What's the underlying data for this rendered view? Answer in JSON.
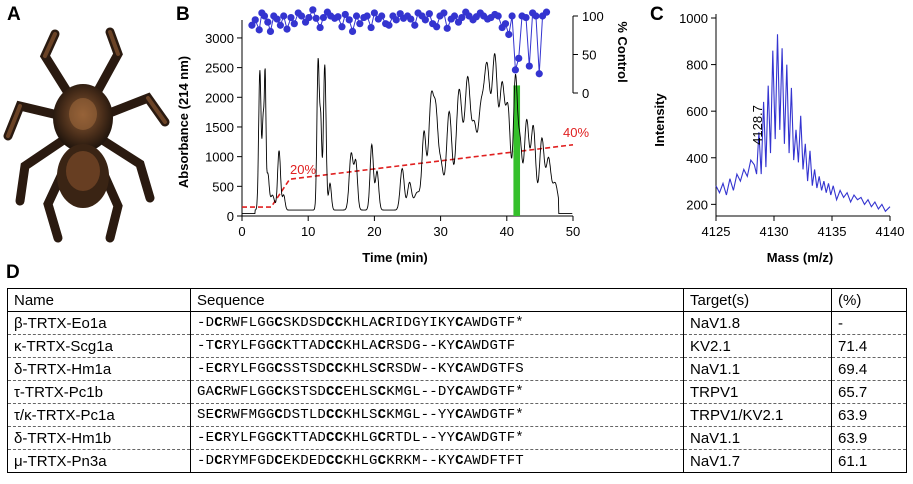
{
  "panels": {
    "a": "A",
    "b": "B",
    "c": "C",
    "d": "D"
  },
  "panel_a": {
    "image": "tarantula-photo"
  },
  "chart_data": [
    {
      "type": "line",
      "panel": "B",
      "title": "",
      "xlabel": "Time (min)",
      "ylabel": "Absorbance (214 nm)",
      "y2label": "% Control",
      "xlim": [
        0,
        50
      ],
      "ylim": [
        0,
        3100
      ],
      "y2lim": [
        0,
        110
      ],
      "xticks": [
        "0",
        "10",
        "20",
        "30",
        "40",
        "50"
      ],
      "yticks": [
        "0",
        "500",
        "1000",
        "1500",
        "2000",
        "2500",
        "3000"
      ],
      "y2ticks": [
        "0",
        "50",
        "100"
      ],
      "gradient_labels": [
        "20%",
        "40%"
      ],
      "gradient": {
        "x": [
          0,
          4.4,
          7.2,
          50
        ],
        "y": [
          150,
          150,
          620,
          1200
        ]
      },
      "highlight": {
        "x_start": 41.0,
        "x_end": 42.0,
        "color": "#35c02b"
      },
      "absorbance_peaks": [
        {
          "t": 2.7,
          "h": 2350,
          "w": 0.18
        },
        {
          "t": 3.2,
          "h": 1500,
          "w": 0.15
        },
        {
          "t": 3.5,
          "h": 2100,
          "w": 0.12
        },
        {
          "t": 3.9,
          "h": 600,
          "w": 0.2
        },
        {
          "t": 4.6,
          "h": 250,
          "w": 0.3
        },
        {
          "t": 5.6,
          "h": 1000,
          "w": 0.22
        },
        {
          "t": 6.3,
          "h": 250,
          "w": 0.2
        },
        {
          "t": 11.5,
          "h": 2520,
          "w": 0.18
        },
        {
          "t": 11.9,
          "h": 1400,
          "w": 0.15
        },
        {
          "t": 12.5,
          "h": 2450,
          "w": 0.2
        },
        {
          "t": 13.3,
          "h": 450,
          "w": 0.2
        },
        {
          "t": 16.5,
          "h": 950,
          "w": 0.3
        },
        {
          "t": 17.2,
          "h": 780,
          "w": 0.25
        },
        {
          "t": 19.6,
          "h": 1100,
          "w": 0.25
        },
        {
          "t": 20.4,
          "h": 650,
          "w": 0.25
        },
        {
          "t": 24.2,
          "h": 700,
          "w": 0.3
        },
        {
          "t": 25.3,
          "h": 450,
          "w": 0.3
        },
        {
          "t": 26.5,
          "h": 300,
          "w": 0.5
        },
        {
          "t": 27.5,
          "h": 1250,
          "w": 0.3
        },
        {
          "t": 28.6,
          "h": 1900,
          "w": 0.4
        },
        {
          "t": 29.3,
          "h": 1200,
          "w": 0.3
        },
        {
          "t": 30.0,
          "h": 800,
          "w": 0.4
        },
        {
          "t": 31.3,
          "h": 1650,
          "w": 0.4
        },
        {
          "t": 32.8,
          "h": 2000,
          "w": 0.45
        },
        {
          "t": 34.1,
          "h": 2200,
          "w": 0.45
        },
        {
          "t": 35.1,
          "h": 1200,
          "w": 0.35
        },
        {
          "t": 36.0,
          "h": 1400,
          "w": 0.4
        },
        {
          "t": 37.0,
          "h": 2400,
          "w": 0.5
        },
        {
          "t": 38.2,
          "h": 2450,
          "w": 0.4
        },
        {
          "t": 39.3,
          "h": 2050,
          "w": 0.4
        },
        {
          "t": 40.2,
          "h": 1600,
          "w": 0.35
        },
        {
          "t": 41.3,
          "h": 2200,
          "w": 0.3
        },
        {
          "t": 42.0,
          "h": 1100,
          "w": 0.3
        },
        {
          "t": 43.0,
          "h": 1500,
          "w": 0.35
        },
        {
          "t": 44.0,
          "h": 1400,
          "w": 0.35
        },
        {
          "t": 45.3,
          "h": 1200,
          "w": 0.35
        },
        {
          "t": 46.3,
          "h": 850,
          "w": 0.35
        },
        {
          "t": 47.3,
          "h": 450,
          "w": 0.4
        }
      ],
      "baseline": 100,
      "activity": {
        "x": [
          1.5,
          2.0,
          2.6,
          3.0,
          3.4,
          3.9,
          4.3,
          4.8,
          5.3,
          5.8,
          6.3,
          6.8,
          7.4,
          7.9,
          8.5,
          9.0,
          9.6,
          10.1,
          10.7,
          11.2,
          11.8,
          12.3,
          12.9,
          13.4,
          14.0,
          14.5,
          15.1,
          15.6,
          16.2,
          16.7,
          17.3,
          17.8,
          18.4,
          18.9,
          19.5,
          20.0,
          20.6,
          21.1,
          21.7,
          22.2,
          22.8,
          23.3,
          23.9,
          24.4,
          25.0,
          25.5,
          26.1,
          26.6,
          27.2,
          27.7,
          28.3,
          28.8,
          29.4,
          29.9,
          30.5,
          31.0,
          31.6,
          32.1,
          32.7,
          33.2,
          33.8,
          34.3,
          34.9,
          35.4,
          36.0,
          36.5,
          37.1,
          37.6,
          38.2,
          38.7,
          39.3,
          39.8,
          40.3,
          40.8,
          41.3,
          41.8,
          42.3,
          42.9,
          43.4,
          43.9,
          44.4,
          44.9,
          45.4,
          46.0
        ],
        "y": [
          88,
          95,
          82,
          104,
          100,
          92,
          80,
          100,
          96,
          88,
          100,
          83,
          98,
          90,
          104,
          100,
          92,
          98,
          108,
          97,
          85,
          98,
          105,
          100,
          97,
          99,
          86,
          102,
          95,
          80,
          100,
          90,
          98,
          100,
          85,
          104,
          96,
          100,
          90,
          88,
          100,
          95,
          103,
          97,
          100,
          96,
          88,
          104,
          100,
          95,
          103,
          90,
          86,
          100,
          104,
          84,
          96,
          100,
          92,
          98,
          105,
          100,
          95,
          99,
          104,
          100,
          96,
          98,
          102,
          100,
          85,
          90,
          76,
          100,
          30,
          45,
          100,
          98,
          35,
          104,
          100,
          25,
          100,
          105
        ]
      }
    },
    {
      "type": "line",
      "panel": "C",
      "title": "",
      "xlabel": "Mass (m/z)",
      "ylabel": "Intensity",
      "xlim": [
        4125,
        4140
      ],
      "ylim": [
        150,
        1000
      ],
      "xticks": [
        "4125",
        "4130",
        "4135",
        "4140"
      ],
      "yticks": [
        "200",
        "400",
        "600",
        "800",
        "1000"
      ],
      "annotation": "4128.7",
      "spectrum": {
        "x": [
          4125.0,
          4125.3,
          4125.6,
          4125.9,
          4126.2,
          4126.5,
          4126.8,
          4127.1,
          4127.4,
          4127.7,
          4128.0,
          4128.3,
          4128.5,
          4128.7,
          4128.9,
          4129.1,
          4129.3,
          4129.5,
          4129.7,
          4129.9,
          4130.1,
          4130.3,
          4130.5,
          4130.7,
          4130.9,
          4131.1,
          4131.3,
          4131.5,
          4131.7,
          4131.9,
          4132.1,
          4132.3,
          4132.5,
          4132.7,
          4132.9,
          4133.1,
          4133.3,
          4133.5,
          4133.7,
          4133.9,
          4134.1,
          4134.3,
          4134.5,
          4134.7,
          4134.9,
          4135.1,
          4135.4,
          4135.7,
          4136.0,
          4136.3,
          4136.6,
          4136.9,
          4137.2,
          4137.5,
          4137.8,
          4138.1,
          4138.4,
          4138.7,
          4139.0,
          4139.3,
          4139.6,
          4140.0
        ],
        "y": [
          280,
          250,
          290,
          240,
          310,
          260,
          330,
          300,
          350,
          320,
          390,
          370,
          330,
          510,
          330,
          640,
          360,
          710,
          420,
          860,
          480,
          930,
          520,
          870,
          460,
          800,
          420,
          700,
          390,
          520,
          380,
          580,
          350,
          460,
          300,
          430,
          280,
          350,
          270,
          320,
          260,
          300,
          250,
          290,
          240,
          280,
          220,
          260,
          230,
          250,
          210,
          240,
          220,
          230,
          200,
          220,
          190,
          210,
          180,
          200,
          170,
          190
        ]
      }
    }
  ],
  "table": {
    "headers": [
      "Name",
      "Sequence",
      "Target(s)",
      "(%)"
    ],
    "rows": [
      {
        "name": "β-TRTX-Eo1a",
        "seq": [
          "-D",
          "C",
          "RWFLGG",
          "C",
          "SKDSD",
          "CC",
          "KHLA",
          "C",
          "RIDGYIKY",
          "C",
          "AWDGTF*"
        ],
        "target": "NaV1.8",
        "pct": "-"
      },
      {
        "name": "κ-TRTX-Scg1a",
        "seq": [
          "-T",
          "C",
          "RYLFGG",
          "C",
          "KTTAD",
          "CC",
          "KHLA",
          "C",
          "RSDG--KY",
          "C",
          "AWDGTF"
        ],
        "target": "KV2.1",
        "pct": "71.4"
      },
      {
        "name": "δ-TRTX-Hm1a",
        "seq": [
          "-E",
          "C",
          "RYLFGG",
          "C",
          "SSTSD",
          "CC",
          "KHLS",
          "C",
          "RSDW--KY",
          "C",
          "AWDGTFS"
        ],
        "target": "NaV1.1",
        "pct": "69.4"
      },
      {
        "name": "τ-TRTX-Pc1b",
        "seq": [
          "GA",
          "C",
          "RWFLGG",
          "C",
          "KSTSD",
          "CC",
          "EHLS",
          "C",
          "KMGL--DY",
          "C",
          "AWDGTF*"
        ],
        "target": "TRPV1",
        "pct": "65.7"
      },
      {
        "name": "τ/κ-TRTX-Pc1a",
        "seq": [
          "SE",
          "C",
          "RWFMGG",
          "C",
          "DSTLD",
          "CC",
          "KHLS",
          "C",
          "KMGL--YY",
          "C",
          "AWDGTF*"
        ],
        "target": "TRPV1/KV2.1",
        "pct": "63.9"
      },
      {
        "name": "δ-TRTX-Hm1b",
        "seq": [
          "-E",
          "C",
          "RYLFGG",
          "C",
          "KTTAD",
          "CC",
          "KHLG",
          "C",
          "RTDL--YY",
          "C",
          "AWDGTF*"
        ],
        "target": "NaV1.1",
        "pct": "63.9"
      },
      {
        "name": "μ-TRTX-Pn3a",
        "seq": [
          "-D",
          "C",
          "RYMFGD",
          "C",
          "EKDED",
          "CC",
          "KHLG",
          "C",
          "KRKM--KY",
          "C",
          "AWDFTFT"
        ],
        "target": "NaV1.7",
        "pct": "61.1"
      }
    ]
  }
}
